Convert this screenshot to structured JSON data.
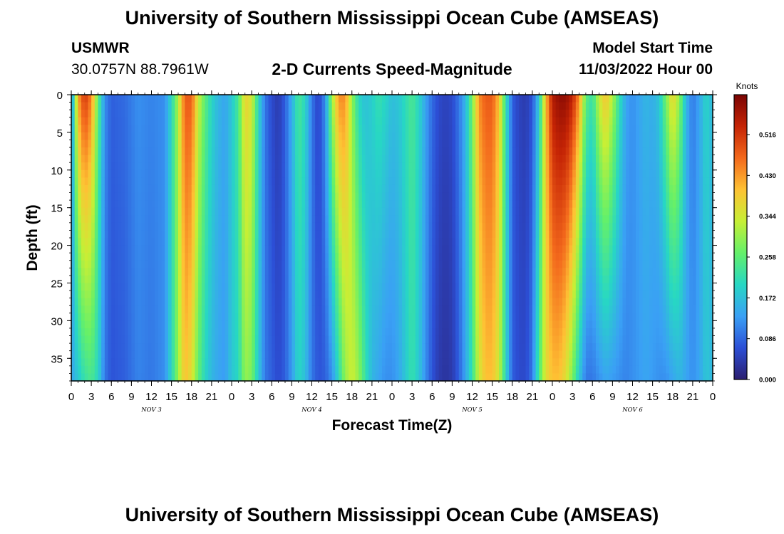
{
  "page": {
    "title": "University of Southern Mississippi Ocean Cube (AMSEAS)",
    "footer_title": "University of Southern Mississippi Ocean Cube (AMSEAS)"
  },
  "header": {
    "station": "USMWR",
    "coords": "30.0757N  88.7961W",
    "subtitle": "2-D Currents Speed-Magnitude",
    "model_label": "Model Start Time",
    "model_time": "11/03/2022 Hour 00"
  },
  "colorbar_colors": [
    "#2b1e6f",
    "#2c4fd6",
    "#3aa0f5",
    "#27d7c4",
    "#64f06a",
    "#c7ef35",
    "#fec234",
    "#f3691c",
    "#c52405",
    "#7a0403"
  ],
  "chart_data": {
    "type": "heatmap",
    "xlabel": "Forecast Time(Z)",
    "ylabel": "Depth (ft)",
    "xlim": [
      0,
      96
    ],
    "ylim": [
      0,
      38
    ],
    "x_ticks": [
      0,
      3,
      6,
      9,
      12,
      15,
      18,
      21,
      24,
      27,
      30,
      33,
      36,
      39,
      42,
      45,
      48,
      51,
      54,
      57,
      60,
      63,
      66,
      69,
      72,
      75,
      78,
      81,
      84,
      87,
      90,
      93,
      96
    ],
    "x_tick_labels": [
      "0",
      "3",
      "6",
      "9",
      "12",
      "15",
      "18",
      "21",
      "0",
      "3",
      "6",
      "9",
      "12",
      "15",
      "18",
      "21",
      "0",
      "3",
      "6",
      "9",
      "12",
      "15",
      "18",
      "21",
      "0",
      "3",
      "6",
      "9",
      "12",
      "15",
      "18",
      "21",
      "0"
    ],
    "y_ticks": [
      0,
      5,
      10,
      15,
      20,
      25,
      30,
      35
    ],
    "y_tick_labels": [
      "0",
      "5",
      "10",
      "15",
      "20",
      "25",
      "30",
      "35"
    ],
    "day_labels": [
      {
        "x": 12,
        "label": "NOV 3"
      },
      {
        "x": 36,
        "label": "NOV 4"
      },
      {
        "x": 60,
        "label": "NOV 5"
      },
      {
        "x": 84,
        "label": "NOV 6"
      }
    ],
    "colorbar": {
      "label": "Knots",
      "range": [
        0,
        0.6
      ],
      "ticks": [
        0.0,
        0.086,
        0.172,
        0.258,
        0.344,
        0.43,
        0.516
      ],
      "tick_labels": [
        "0.000",
        "0.086",
        "0.172",
        "0.258",
        "0.344",
        "0.430",
        "0.516"
      ]
    },
    "surface_profile": [
      {
        "t": 0,
        "v": 0.1
      },
      {
        "t": 1,
        "v": 0.42
      },
      {
        "t": 2,
        "v": 0.52
      },
      {
        "t": 3,
        "v": 0.45
      },
      {
        "t": 4,
        "v": 0.26
      },
      {
        "t": 5,
        "v": 0.12
      },
      {
        "t": 6,
        "v": 0.08
      },
      {
        "t": 8,
        "v": 0.09
      },
      {
        "t": 10,
        "v": 0.12
      },
      {
        "t": 12,
        "v": 0.11
      },
      {
        "t": 14,
        "v": 0.12
      },
      {
        "t": 15,
        "v": 0.2
      },
      {
        "t": 16,
        "v": 0.32
      },
      {
        "t": 17,
        "v": 0.48
      },
      {
        "t": 18,
        "v": 0.48
      },
      {
        "t": 19,
        "v": 0.34
      },
      {
        "t": 20,
        "v": 0.26
      },
      {
        "t": 21,
        "v": 0.2
      },
      {
        "t": 22,
        "v": 0.16
      },
      {
        "t": 23,
        "v": 0.14
      },
      {
        "t": 24,
        "v": 0.18
      },
      {
        "t": 25,
        "v": 0.24
      },
      {
        "t": 26,
        "v": 0.38
      },
      {
        "t": 27,
        "v": 0.35
      },
      {
        "t": 28,
        "v": 0.2
      },
      {
        "t": 29,
        "v": 0.1
      },
      {
        "t": 30,
        "v": 0.06
      },
      {
        "t": 31,
        "v": 0.04
      },
      {
        "t": 32,
        "v": 0.08
      },
      {
        "t": 33,
        "v": 0.15
      },
      {
        "t": 34,
        "v": 0.24
      },
      {
        "t": 35,
        "v": 0.2
      },
      {
        "t": 36,
        "v": 0.1
      },
      {
        "t": 37,
        "v": 0.05
      },
      {
        "t": 38,
        "v": 0.12
      },
      {
        "t": 39,
        "v": 0.3
      },
      {
        "t": 40,
        "v": 0.44
      },
      {
        "t": 41,
        "v": 0.44
      },
      {
        "t": 42,
        "v": 0.3
      },
      {
        "t": 43,
        "v": 0.2
      },
      {
        "t": 44,
        "v": 0.17
      },
      {
        "t": 45,
        "v": 0.19
      },
      {
        "t": 46,
        "v": 0.22
      },
      {
        "t": 47,
        "v": 0.2
      },
      {
        "t": 48,
        "v": 0.17
      },
      {
        "t": 49,
        "v": 0.18
      },
      {
        "t": 50,
        "v": 0.21
      },
      {
        "t": 51,
        "v": 0.24
      },
      {
        "t": 52,
        "v": 0.2
      },
      {
        "t": 53,
        "v": 0.14
      },
      {
        "t": 54,
        "v": 0.09
      },
      {
        "t": 55,
        "v": 0.06
      },
      {
        "t": 56,
        "v": 0.05
      },
      {
        "t": 57,
        "v": 0.06
      },
      {
        "t": 58,
        "v": 0.1
      },
      {
        "t": 59,
        "v": 0.16
      },
      {
        "t": 60,
        "v": 0.28
      },
      {
        "t": 61,
        "v": 0.44
      },
      {
        "t": 62,
        "v": 0.48
      },
      {
        "t": 63,
        "v": 0.48
      },
      {
        "t": 64,
        "v": 0.4
      },
      {
        "t": 65,
        "v": 0.22
      },
      {
        "t": 66,
        "v": 0.08
      },
      {
        "t": 67,
        "v": 0.05
      },
      {
        "t": 68,
        "v": 0.04
      },
      {
        "t": 69,
        "v": 0.07
      },
      {
        "t": 70,
        "v": 0.18
      },
      {
        "t": 71,
        "v": 0.4
      },
      {
        "t": 72,
        "v": 0.55
      },
      {
        "t": 73,
        "v": 0.58
      },
      {
        "t": 74,
        "v": 0.58
      },
      {
        "t": 75,
        "v": 0.54
      },
      {
        "t": 76,
        "v": 0.44
      },
      {
        "t": 77,
        "v": 0.26
      },
      {
        "t": 78,
        "v": 0.22
      },
      {
        "t": 79,
        "v": 0.34
      },
      {
        "t": 80,
        "v": 0.4
      },
      {
        "t": 81,
        "v": 0.32
      },
      {
        "t": 82,
        "v": 0.22
      },
      {
        "t": 83,
        "v": 0.14
      },
      {
        "t": 84,
        "v": 0.12
      },
      {
        "t": 85,
        "v": 0.14
      },
      {
        "t": 86,
        "v": 0.16
      },
      {
        "t": 87,
        "v": 0.15
      },
      {
        "t": 88,
        "v": 0.18
      },
      {
        "t": 89,
        "v": 0.28
      },
      {
        "t": 90,
        "v": 0.38
      },
      {
        "t": 91,
        "v": 0.3
      },
      {
        "t": 92,
        "v": 0.16
      },
      {
        "t": 93,
        "v": 0.1
      },
      {
        "t": 94,
        "v": 0.14
      },
      {
        "t": 95,
        "v": 0.2
      },
      {
        "t": 96,
        "v": 0.16
      }
    ],
    "bottom_profile": [
      {
        "t": 0,
        "v": 0.14
      },
      {
        "t": 1,
        "v": 0.18
      },
      {
        "t": 2,
        "v": 0.22
      },
      {
        "t": 3,
        "v": 0.24
      },
      {
        "t": 4,
        "v": 0.2
      },
      {
        "t": 5,
        "v": 0.1
      },
      {
        "t": 6,
        "v": 0.07
      },
      {
        "t": 8,
        "v": 0.08
      },
      {
        "t": 10,
        "v": 0.11
      },
      {
        "t": 12,
        "v": 0.1
      },
      {
        "t": 14,
        "v": 0.12
      },
      {
        "t": 15,
        "v": 0.2
      },
      {
        "t": 16,
        "v": 0.3
      },
      {
        "t": 17,
        "v": 0.4
      },
      {
        "t": 18,
        "v": 0.36
      },
      {
        "t": 19,
        "v": 0.26
      },
      {
        "t": 20,
        "v": 0.2
      },
      {
        "t": 21,
        "v": 0.16
      },
      {
        "t": 22,
        "v": 0.14
      },
      {
        "t": 23,
        "v": 0.13
      },
      {
        "t": 24,
        "v": 0.18
      },
      {
        "t": 25,
        "v": 0.2
      },
      {
        "t": 26,
        "v": 0.3
      },
      {
        "t": 27,
        "v": 0.28
      },
      {
        "t": 28,
        "v": 0.18
      },
      {
        "t": 29,
        "v": 0.1
      },
      {
        "t": 30,
        "v": 0.08
      },
      {
        "t": 31,
        "v": 0.06
      },
      {
        "t": 32,
        "v": 0.08
      },
      {
        "t": 33,
        "v": 0.13
      },
      {
        "t": 34,
        "v": 0.2
      },
      {
        "t": 35,
        "v": 0.17
      },
      {
        "t": 36,
        "v": 0.1
      },
      {
        "t": 37,
        "v": 0.07
      },
      {
        "t": 38,
        "v": 0.08
      },
      {
        "t": 39,
        "v": 0.12
      },
      {
        "t": 40,
        "v": 0.2
      },
      {
        "t": 41,
        "v": 0.3
      },
      {
        "t": 42,
        "v": 0.34
      },
      {
        "t": 43,
        "v": 0.3
      },
      {
        "t": 44,
        "v": 0.22
      },
      {
        "t": 45,
        "v": 0.16
      },
      {
        "t": 46,
        "v": 0.14
      },
      {
        "t": 47,
        "v": 0.12
      },
      {
        "t": 48,
        "v": 0.12
      },
      {
        "t": 49,
        "v": 0.14
      },
      {
        "t": 50,
        "v": 0.18
      },
      {
        "t": 51,
        "v": 0.22
      },
      {
        "t": 52,
        "v": 0.18
      },
      {
        "t": 53,
        "v": 0.12
      },
      {
        "t": 54,
        "v": 0.07
      },
      {
        "t": 55,
        "v": 0.04
      },
      {
        "t": 56,
        "v": 0.03
      },
      {
        "t": 57,
        "v": 0.04
      },
      {
        "t": 58,
        "v": 0.08
      },
      {
        "t": 59,
        "v": 0.14
      },
      {
        "t": 60,
        "v": 0.22
      },
      {
        "t": 61,
        "v": 0.34
      },
      {
        "t": 62,
        "v": 0.4
      },
      {
        "t": 63,
        "v": 0.4
      },
      {
        "t": 64,
        "v": 0.34
      },
      {
        "t": 65,
        "v": 0.2
      },
      {
        "t": 66,
        "v": 0.08
      },
      {
        "t": 67,
        "v": 0.06
      },
      {
        "t": 68,
        "v": 0.06
      },
      {
        "t": 69,
        "v": 0.1
      },
      {
        "t": 70,
        "v": 0.24
      },
      {
        "t": 71,
        "v": 0.36
      },
      {
        "t": 72,
        "v": 0.4
      },
      {
        "t": 73,
        "v": 0.4
      },
      {
        "t": 74,
        "v": 0.36
      },
      {
        "t": 75,
        "v": 0.28
      },
      {
        "t": 76,
        "v": 0.18
      },
      {
        "t": 77,
        "v": 0.1
      },
      {
        "t": 78,
        "v": 0.1
      },
      {
        "t": 79,
        "v": 0.12
      },
      {
        "t": 80,
        "v": 0.14
      },
      {
        "t": 81,
        "v": 0.13
      },
      {
        "t": 82,
        "v": 0.12
      },
      {
        "t": 83,
        "v": 0.11
      },
      {
        "t": 84,
        "v": 0.12
      },
      {
        "t": 85,
        "v": 0.13
      },
      {
        "t": 86,
        "v": 0.14
      },
      {
        "t": 87,
        "v": 0.13
      },
      {
        "t": 88,
        "v": 0.12
      },
      {
        "t": 89,
        "v": 0.12
      },
      {
        "t": 90,
        "v": 0.14
      },
      {
        "t": 91,
        "v": 0.16
      },
      {
        "t": 92,
        "v": 0.14
      },
      {
        "t": 93,
        "v": 0.12
      },
      {
        "t": 94,
        "v": 0.14
      },
      {
        "t": 95,
        "v": 0.18
      },
      {
        "t": 96,
        "v": 0.16
      }
    ]
  }
}
